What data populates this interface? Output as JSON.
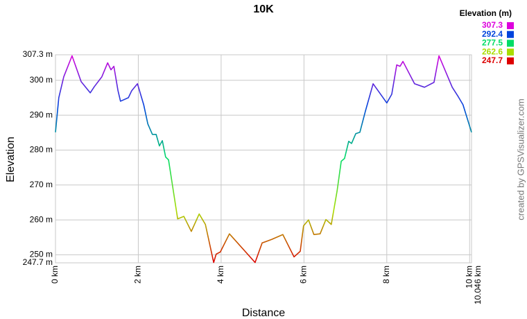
{
  "chart_data": {
    "type": "line",
    "title": "10K",
    "xlabel": "Distance",
    "ylabel": "Elevation",
    "credit": "created by GPSVisualizer.com",
    "legend_title": "Elevation (m)",
    "colorscale": [
      {
        "value": 307.3,
        "color": "#dd00dd"
      },
      {
        "value": 292.4,
        "color": "#0044dd"
      },
      {
        "value": 277.5,
        "color": "#00dd66"
      },
      {
        "value": 262.6,
        "color": "#aadd00"
      },
      {
        "value": 247.7,
        "color": "#dd0000"
      }
    ],
    "x": [
      0,
      0.08,
      0.2,
      0.4,
      0.62,
      0.84,
      0.94,
      1.12,
      1.26,
      1.34,
      1.41,
      1.51,
      1.57,
      1.76,
      1.84,
      1.98,
      2.13,
      2.23,
      2.34,
      2.43,
      2.51,
      2.58,
      2.66,
      2.73,
      2.95,
      3.1,
      3.28,
      3.47,
      3.62,
      3.82,
      3.88,
      3.98,
      4.2,
      4.82,
      4.99,
      5.22,
      5.49,
      5.76,
      5.91,
      5.99,
      6.11,
      6.24,
      6.39,
      6.53,
      6.66,
      6.8,
      6.9,
      6.98,
      7.08,
      7.15,
      7.25,
      7.35,
      7.48,
      7.67,
      7.79,
      8.0,
      8.12,
      8.24,
      8.32,
      8.39,
      8.67,
      8.91,
      9.14,
      9.26,
      9.58,
      9.71,
      9.84,
      10.046
    ],
    "values": [
      285.1,
      295,
      301,
      307,
      299.6,
      296.4,
      298.2,
      301,
      305,
      303,
      304,
      297,
      294,
      295,
      297,
      299,
      293,
      287.5,
      284.5,
      284.5,
      281.2,
      282.7,
      278,
      277.2,
      260.3,
      261,
      256.7,
      261.7,
      258.7,
      247.8,
      250.2,
      250.8,
      256,
      247.8,
      253.4,
      254.4,
      255.8,
      249.4,
      251,
      258.3,
      260,
      255.8,
      256,
      260.1,
      258.7,
      268.3,
      276.8,
      277.6,
      282.5,
      281.9,
      284.7,
      285.1,
      291,
      299,
      297,
      293.5,
      296,
      304.4,
      304,
      305.4,
      299,
      298,
      299.4,
      307,
      298,
      295.6,
      293,
      285.1
    ],
    "xlim": [
      0,
      10.046
    ],
    "ylim": [
      247.7,
      307.3
    ],
    "xticks": [
      {
        "value": 0,
        "label": "0 km"
      },
      {
        "value": 2,
        "label": "2 km"
      },
      {
        "value": 4,
        "label": "4 km"
      },
      {
        "value": 6,
        "label": "6 km"
      },
      {
        "value": 8,
        "label": "8 km"
      },
      {
        "value": 10,
        "label": "10 km"
      },
      {
        "value": 10.046,
        "label": "10.046 km"
      }
    ],
    "yticks": [
      {
        "value": 247.7,
        "label": "247.7 m"
      },
      {
        "value": 250,
        "label": "250 m"
      },
      {
        "value": 260,
        "label": "260 m"
      },
      {
        "value": 270,
        "label": "270 m"
      },
      {
        "value": 280,
        "label": "280 m"
      },
      {
        "value": 290,
        "label": "290 m"
      },
      {
        "value": 300,
        "label": "300 m"
      },
      {
        "value": 307.3,
        "label": "307.3 m"
      }
    ],
    "grid": true
  }
}
